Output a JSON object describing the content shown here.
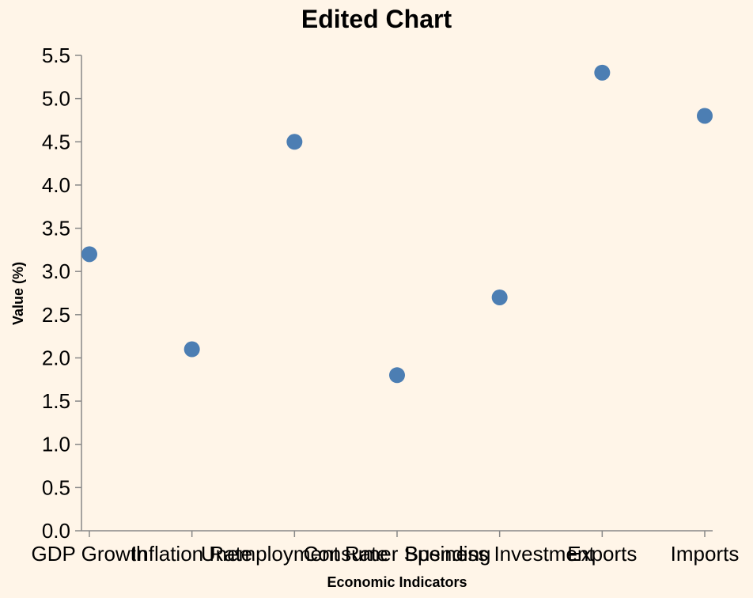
{
  "chart_data": {
    "type": "scatter",
    "title": "Edited Chart",
    "xlabel": "Economic Indicators",
    "ylabel": "Value (%)",
    "categories": [
      "GDP Growth",
      "Inflation Rate",
      "Unemployment Rate",
      "Consumer Spending",
      "Business Investment",
      "Exports",
      "Imports"
    ],
    "values": [
      3.2,
      2.1,
      4.5,
      1.8,
      2.7,
      5.3,
      4.8
    ],
    "ylim": [
      0,
      5.5
    ],
    "yticks": [
      "0.0",
      "0.5",
      "1.0",
      "1.5",
      "2.0",
      "2.5",
      "3.0",
      "3.5",
      "4.0",
      "4.5",
      "5.0",
      "5.5"
    ],
    "grid": false,
    "point_color": "#4C7EB3",
    "background_color": "#FFF5E8"
  }
}
